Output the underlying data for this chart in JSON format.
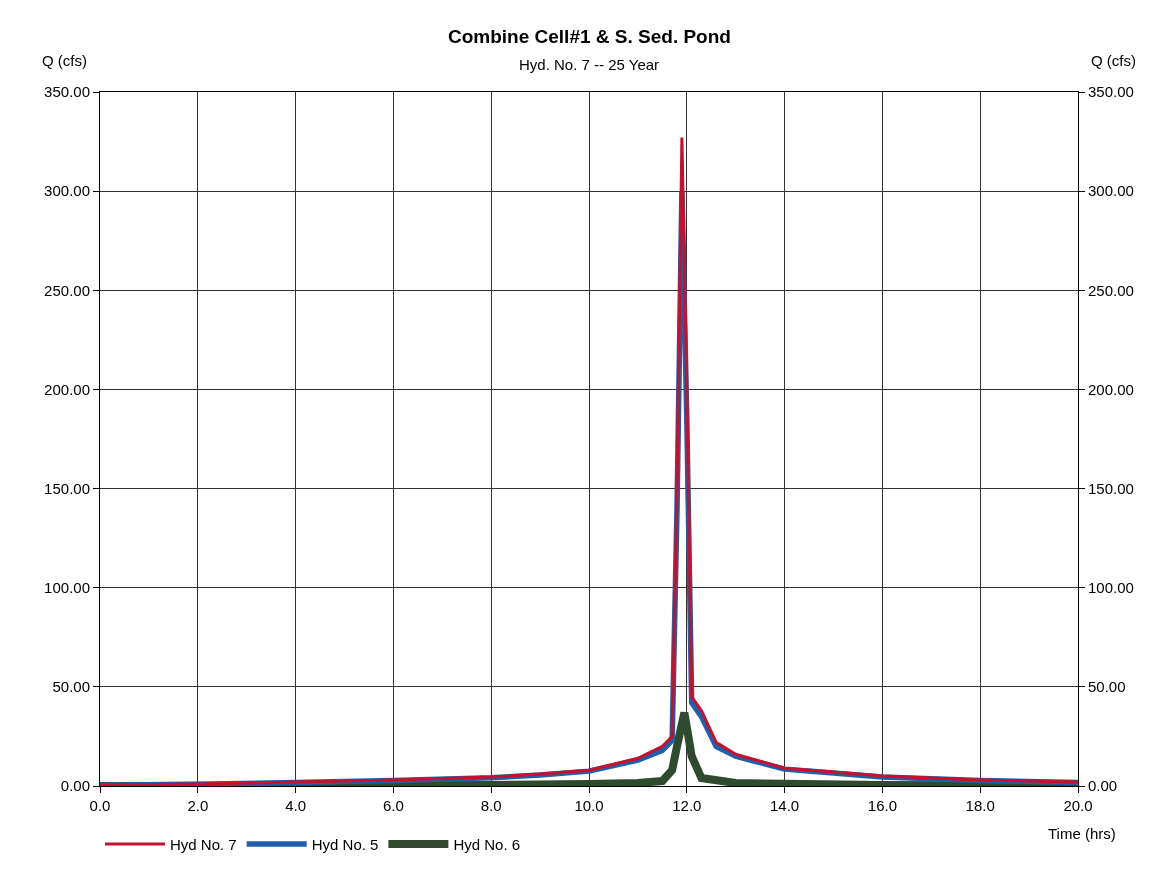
{
  "chart_data": {
    "type": "line",
    "title": "Combine Cell#1 & S. Sed. Pond",
    "subtitle": "Hyd. No. 7 -- 25 Year",
    "xlabel": "Time (hrs)",
    "ylabel": "Q (cfs)",
    "y2label": "Q (cfs)",
    "series": [
      {
        "name": "Hyd No. 7",
        "color": "#c8102e",
        "x": [
          0,
          2,
          4,
          6,
          8,
          9,
          10,
          11,
          11.5,
          11.7,
          11.8,
          11.9,
          12.0,
          12.1,
          12.3,
          12.6,
          13,
          14,
          15,
          16,
          18,
          20
        ],
        "values": [
          0.5,
          1,
          2,
          3,
          4.5,
          6,
          8,
          14,
          20,
          25,
          150,
          327,
          200,
          45,
          38,
          22,
          16,
          9,
          7,
          5,
          3,
          2
        ]
      },
      {
        "name": "Hyd No. 5",
        "color": "#1f5fa8",
        "x": [
          0,
          2,
          4,
          6,
          8,
          9,
          10,
          11,
          11.5,
          11.7,
          11.8,
          11.9,
          12.0,
          12.1,
          12.3,
          12.6,
          13,
          14,
          15,
          16,
          18,
          20
        ],
        "values": [
          0.4,
          0.9,
          1.8,
          2.8,
          4.2,
          5.5,
          7.5,
          13,
          18,
          23,
          140,
          300,
          185,
          42,
          35,
          20,
          15,
          8.5,
          6.5,
          4.5,
          2.8,
          1.8
        ]
      },
      {
        "name": "Hyd No. 6",
        "color": "#2f4a2f",
        "x": [
          0,
          4,
          8,
          10,
          11,
          11.5,
          11.7,
          11.8,
          11.95,
          12.1,
          12.3,
          13,
          16,
          20
        ],
        "values": [
          0,
          0.2,
          0.5,
          1,
          1.5,
          2.5,
          8,
          20,
          37,
          15,
          4,
          1.5,
          0.5,
          0.2
        ]
      }
    ],
    "xlim": [
      0,
      20
    ],
    "xticks": [
      {
        "value": 0,
        "label": "0.0"
      },
      {
        "value": 2,
        "label": "2.0"
      },
      {
        "value": 4,
        "label": "4.0"
      },
      {
        "value": 6,
        "label": "6.0"
      },
      {
        "value": 8,
        "label": "8.0"
      },
      {
        "value": 10,
        "label": "10.0"
      },
      {
        "value": 12,
        "label": "12.0"
      },
      {
        "value": 14,
        "label": "14.0"
      },
      {
        "value": 16,
        "label": "16.0"
      },
      {
        "value": 18,
        "label": "18.0"
      },
      {
        "value": 20,
        "label": "20.0"
      }
    ],
    "ylim": [
      0,
      350
    ],
    "yticks": [
      {
        "value": 0,
        "label": "0.00"
      },
      {
        "value": 50,
        "label": "50.00"
      },
      {
        "value": 100,
        "label": "100.00"
      },
      {
        "value": 150,
        "label": "150.00"
      },
      {
        "value": 200,
        "label": "200.00"
      },
      {
        "value": 250,
        "label": "250.00"
      },
      {
        "value": 300,
        "label": "300.00"
      },
      {
        "value": 350,
        "label": "350.00"
      }
    ],
    "y2lim": [
      0,
      350
    ],
    "y2ticks": [
      {
        "value": 0,
        "label": "0.00"
      },
      {
        "value": 50,
        "label": "50.00"
      },
      {
        "value": 100,
        "label": "100.00"
      },
      {
        "value": 150,
        "label": "150.00"
      },
      {
        "value": 200,
        "label": "200.00"
      },
      {
        "value": 250,
        "label": "250.00"
      },
      {
        "value": 300,
        "label": "300.00"
      },
      {
        "value": 350,
        "label": "350.00"
      }
    ],
    "grid": true,
    "legend": "bottom",
    "marker": "none",
    "line_style": "solid"
  }
}
